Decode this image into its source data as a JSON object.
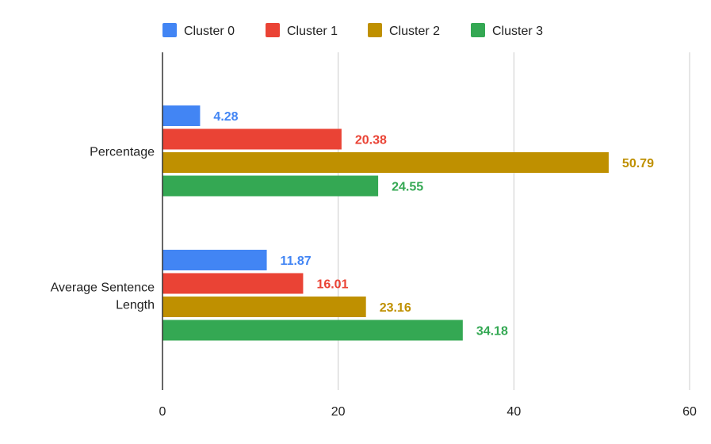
{
  "chart_data": {
    "type": "bar",
    "orientation": "horizontal",
    "categories": [
      "Percentage",
      "Average Sentence Length"
    ],
    "category_lines": [
      [
        "Percentage"
      ],
      [
        "Average Sentence",
        "Length"
      ]
    ],
    "series": [
      {
        "name": "Cluster 0",
        "color": "#4285f4",
        "values": [
          4.28,
          11.87
        ]
      },
      {
        "name": "Cluster 1",
        "color": "#ea4335",
        "values": [
          20.38,
          16.01
        ]
      },
      {
        "name": "Cluster 2",
        "color": "#bf9000",
        "values": [
          50.79,
          23.16
        ]
      },
      {
        "name": "Cluster 3",
        "color": "#34a853",
        "values": [
          24.55,
          34.18
        ]
      }
    ],
    "xlim": [
      0,
      60
    ],
    "xticks": [
      0,
      20,
      40,
      60
    ],
    "data_labels": true,
    "grid": "vertical",
    "legend_position": "top",
    "title": "",
    "xlabel": "",
    "ylabel": ""
  }
}
